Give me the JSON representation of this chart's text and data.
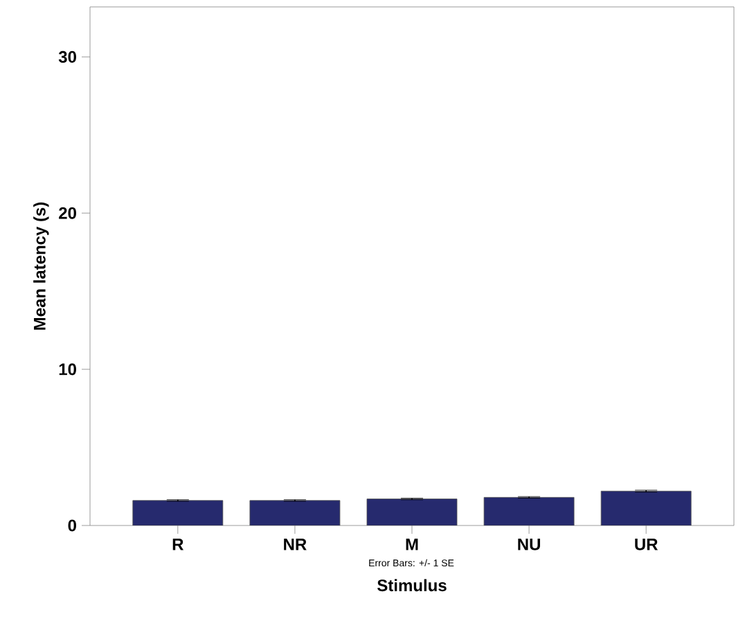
{
  "chart_data": {
    "type": "bar",
    "xlabel": "Stimulus",
    "ylabel": "Mean latency (s)",
    "categories": [
      "R",
      "NR",
      "M",
      "NU",
      "UR"
    ],
    "values": [
      1.6,
      1.6,
      1.7,
      1.8,
      2.2
    ],
    "errors": [
      0.05,
      0.05,
      0.05,
      0.05,
      0.06
    ],
    "color": "#262a6e",
    "ylim": [
      0,
      33.2
    ],
    "yticks": [
      0,
      10,
      20,
      30
    ],
    "grid": false,
    "annotations": [
      "Error Bars: +/- 1 SE"
    ]
  }
}
